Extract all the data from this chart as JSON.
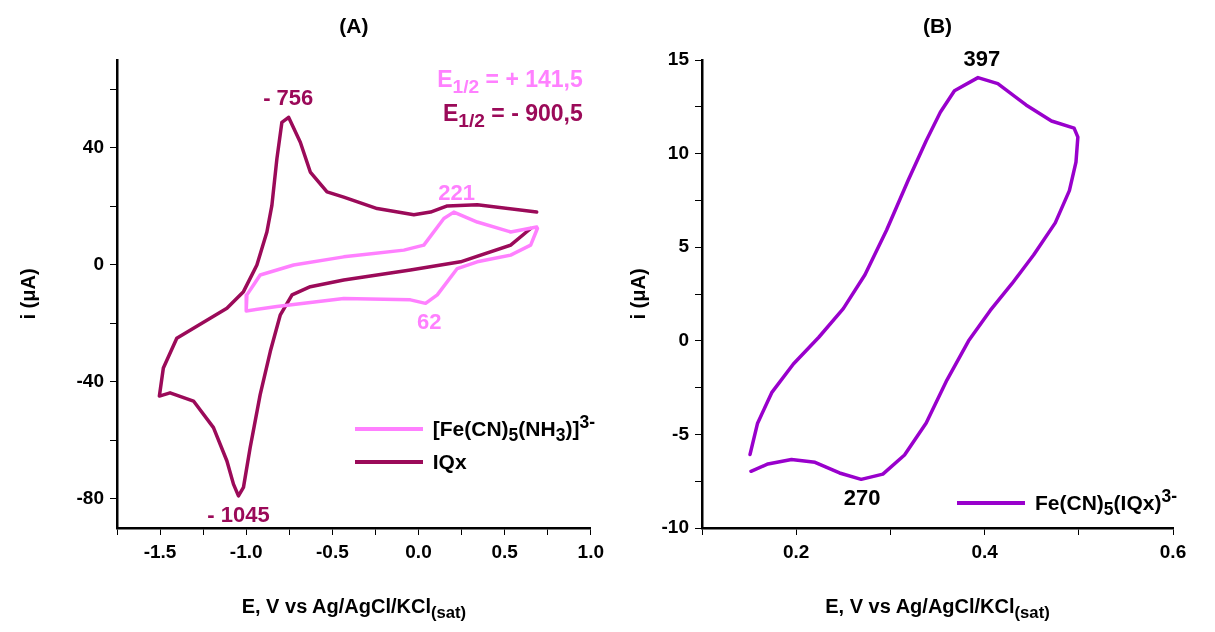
{
  "chart_data": [
    {
      "type": "line",
      "title": "(A)",
      "xlabel": "E, V vs Ag/AgCl/KCl$_{(sat)}$",
      "ylabel": "i (μA)",
      "xlim": [
        -1.75,
        1.0
      ],
      "ylim": [
        -90,
        70
      ],
      "xticks": [
        {
          "value": -1.75,
          "label": null
        },
        -1.5,
        {
          "value": -1.25,
          "label": null
        },
        "-1.0",
        {
          "value": -0.75,
          "label": null
        },
        -0.5,
        {
          "value": -0.25,
          "label": null
        },
        "0.0",
        {
          "value": 0.25,
          "label": null
        },
        0.5,
        {
          "value": 0.75,
          "label": null
        },
        "1.0"
      ],
      "yticks": [
        -80,
        {
          "value": -60,
          "label": null
        },
        -40,
        {
          "value": -20,
          "label": null
        },
        0,
        {
          "value": 20,
          "label": null
        },
        40,
        {
          "value": 60,
          "label": null
        }
      ],
      "legend": "bottom right",
      "marker": "none",
      "line_style": "solid",
      "series": [
        {
          "name": "[Fe(CN)$_{5}$(NH$_{3}$)]$^{3-}$",
          "color": "#ff80ff",
          "x": [
            0.686,
            0.535,
            0.341,
            0.205,
            0.147,
            0.031,
            -0.085,
            -0.434,
            -0.725,
            -0.919,
            -0.996,
            -1.0,
            -0.822,
            -0.434,
            -0.047,
            0.041,
            0.109,
            0.225,
            0.341,
            0.535,
            0.651,
            0.69
          ],
          "values": [
            12.9,
            11.2,
            14.6,
            18.0,
            15.8,
            6.7,
            5.0,
            2.7,
            -0.1,
            -3.5,
            -10.3,
            -15.8,
            -14.3,
            -11.5,
            -12.0,
            -13.2,
            -10.3,
            -1.3,
            1.0,
            3.3,
            6.7,
            12.4
          ]
        },
        {
          "name": "IQx",
          "color": "#9b0a59",
          "x": [
            0.686,
            0.341,
            0.167,
            0.07,
            -0.027,
            -0.24,
            -0.434,
            -0.531,
            -0.628,
            -0.686,
            -0.754,
            -0.793,
            -0.822,
            -0.851,
            -0.88,
            -0.938,
            -1.016,
            -1.112,
            -1.209,
            -1.403,
            -1.481,
            -1.504,
            -1.442,
            -1.306,
            -1.19,
            -1.112,
            -1.074,
            -1.045,
            -1.016,
            -0.977,
            -0.919,
            -0.86,
            -0.802,
            -0.734,
            -0.628,
            -0.434,
            -0.047,
            0.244,
            0.535,
            0.651
          ],
          "values": [
            18.0,
            20.5,
            20.1,
            18.0,
            17.1,
            19.2,
            23.1,
            24.9,
            31.7,
            41.9,
            50.4,
            48.7,
            36.2,
            20.3,
            11.2,
            -0.1,
            -9.2,
            -14.9,
            -18.3,
            -25.1,
            -35.3,
            -44.9,
            -43.8,
            -46.6,
            -55.7,
            -67.1,
            -75,
            -79,
            -76.1,
            -62.5,
            -44.4,
            -29.6,
            -17.1,
            -10.3,
            -7.5,
            -5.2,
            -1.8,
            1.0,
            6.7,
            12.4
          ]
        }
      ],
      "annotations": [
        "E$_{1/2}$ = + 141,5",
        "E$_{1/2}$ = - 900,5",
        {
          "text": "- 756",
          "x": -0.756,
          "y": 50.4
        },
        {
          "text": "221",
          "x": 0.221,
          "y": 18.0
        },
        {
          "text": "62",
          "x": 0.062,
          "y": -13.2
        },
        {
          "text": "- 1045",
          "x": -1.045,
          "y": -79
        }
      ]
    },
    {
      "type": "line",
      "title": "(B)",
      "xlabel": "E, V vs Ag/AgCl/KCl$_{(sat)}$",
      "ylabel": "i (μA)",
      "xlim": [
        0.1,
        0.6
      ],
      "ylim": [
        -10,
        15
      ],
      "xticks": [
        {
          "value": 0.1,
          "label": null
        },
        0.2,
        {
          "value": 0.3,
          "label": null
        },
        0.4,
        {
          "value": 0.5,
          "label": null
        },
        0.6
      ],
      "yticks": [
        -10,
        {
          "value": -7.5,
          "label": null
        },
        -5,
        {
          "value": -2.5,
          "label": null
        },
        0,
        {
          "value": 2.5,
          "label": null
        },
        5,
        {
          "value": 7.5,
          "label": null
        },
        10,
        {
          "value": 12.5,
          "label": null
        },
        15
      ],
      "legend": "bottom right",
      "marker": "none",
      "line_style": "solid",
      "series": [
        {
          "name": "Fe(CN)$_{5}$(IQx)$^{3-}$",
          "color": "#9900cc",
          "x": [
            0.151,
            0.159,
            0.174,
            0.197,
            0.224,
            0.25,
            0.273,
            0.296,
            0.319,
            0.338,
            0.353,
            0.368,
            0.393,
            0.414,
            0.444,
            0.471,
            0.495,
            0.499,
            0.497,
            0.49,
            0.475,
            0.452,
            0.429,
            0.406,
            0.383,
            0.36,
            0.338,
            0.315,
            0.292,
            0.269,
            0.246,
            0.22,
            0.195,
            0.17,
            0.152
          ],
          "values": [
            -6.07,
            -4.4,
            -2.77,
            -1.24,
            0.19,
            1.72,
            3.53,
            5.92,
            8.59,
            10.69,
            12.21,
            13.36,
            14.06,
            13.74,
            12.6,
            11.74,
            11.36,
            10.88,
            9.54,
            8.02,
            6.3,
            4.58,
            3.05,
            1.62,
            0,
            -2.1,
            -4.39,
            -6.1,
            -7.12,
            -7.4,
            -7.06,
            -6.49,
            -6.34,
            -6.58,
            -6.97
          ]
        }
      ],
      "annotations": [
        {
          "text": "397",
          "x": 0.397,
          "y": 14.06
        },
        {
          "text": "270",
          "x": 0.27,
          "y": -7.4
        }
      ]
    }
  ]
}
